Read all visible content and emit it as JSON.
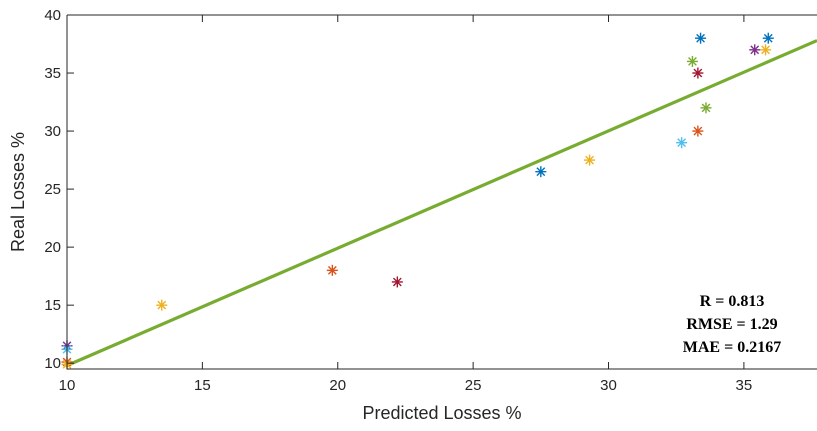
{
  "chart_data": {
    "type": "scatter",
    "title": "",
    "xlabel": "Predicted Losses %",
    "ylabel": "Real Losses %",
    "xlim": [
      10,
      37.7
    ],
    "ylim": [
      9.5,
      40
    ],
    "xticks": [
      "10",
      "15",
      "20",
      "25",
      "30",
      "35"
    ],
    "yticks": [
      "10",
      "15",
      "20",
      "25",
      "30",
      "35",
      "40"
    ],
    "grid": false,
    "marker": "asterisk",
    "points": [
      {
        "x": 10.0,
        "y": 11.5,
        "color": "#7E2F8E"
      },
      {
        "x": 10.0,
        "y": 11.2,
        "color": "#4DBEEE"
      },
      {
        "x": 10.0,
        "y": 10.1,
        "color": "#D95319"
      },
      {
        "x": 10.0,
        "y": 9.9,
        "color": "#EDB120"
      },
      {
        "x": 13.5,
        "y": 15.0,
        "color": "#EDB120"
      },
      {
        "x": 19.8,
        "y": 18.0,
        "color": "#D95319"
      },
      {
        "x": 22.2,
        "y": 17.0,
        "color": "#A2142F"
      },
      {
        "x": 27.5,
        "y": 26.5,
        "color": "#0072BD"
      },
      {
        "x": 29.3,
        "y": 27.5,
        "color": "#EDB120"
      },
      {
        "x": 32.7,
        "y": 29.0,
        "color": "#4DBEEE"
      },
      {
        "x": 33.1,
        "y": 36.0,
        "color": "#77AC30"
      },
      {
        "x": 33.3,
        "y": 35.0,
        "color": "#A2142F"
      },
      {
        "x": 33.3,
        "y": 30.0,
        "color": "#D95319"
      },
      {
        "x": 33.4,
        "y": 38.0,
        "color": "#0072BD"
      },
      {
        "x": 33.6,
        "y": 32.0,
        "color": "#77AC30"
      },
      {
        "x": 35.4,
        "y": 37.0,
        "color": "#7E2F8E"
      },
      {
        "x": 35.8,
        "y": 37.0,
        "color": "#EDB120"
      },
      {
        "x": 35.9,
        "y": 38.0,
        "color": "#0072BD"
      }
    ],
    "fit_line": {
      "x": [
        10,
        37.7
      ],
      "y": [
        9.8,
        37.8
      ],
      "color": "#77AC30"
    },
    "annotations": [
      "R = 0.813",
      "RMSE = 1.29",
      "MAE = 0.2167"
    ]
  }
}
